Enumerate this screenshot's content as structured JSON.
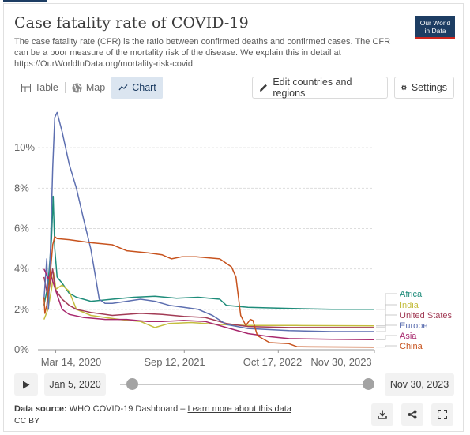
{
  "header": {
    "title": "Case fatality rate of COVID-19",
    "subtitle": "The case fatality rate (CFR) is the ratio between confirmed deaths and confirmed cases. The CFR can be a poor measure of the mortality risk of the disease. We explain this in detail at https://OurWorldInData.org/mortality-risk-covid",
    "logo_line1": "Our World",
    "logo_line2": "in Data"
  },
  "tabs": [
    {
      "label": "Table",
      "icon": "table-icon"
    },
    {
      "label": "Map",
      "icon": "globe-icon"
    },
    {
      "label": "Chart",
      "icon": "line-chart-icon",
      "active": true
    }
  ],
  "buttons": {
    "edit_label": "Edit countries and regions",
    "settings_label": "Settings"
  },
  "timeline": {
    "start_date": "Jan 5, 2020",
    "end_date": "Nov 30, 2023",
    "start_fraction": 0.0,
    "end_fraction": 1.0
  },
  "footer": {
    "source_label": "Data source:",
    "source_text": "WHO COVID-19 Dashboard –",
    "learn_more": "Learn more about this data",
    "license": "CC BY"
  },
  "colors": {
    "Africa": "#1e8c7a",
    "India": "#c4bd3e",
    "United States": "#a23b55",
    "Europe": "#5d6fb0",
    "Asia": "#a8286d",
    "China": "#c7531e"
  },
  "chart_data": {
    "type": "line",
    "title": "",
    "xlabel": "",
    "ylabel": "",
    "x_ticks": [
      "Mar 14, 2020",
      "Sep 12, 2021",
      "Oct 17, 2022",
      "Nov 30, 2023"
    ],
    "y_ticks": [
      "0%",
      "2%",
      "4%",
      "6%",
      "8%",
      "10%"
    ],
    "ylim": [
      0,
      12
    ],
    "xlim": [
      "2020-01-05",
      "2023-11-30"
    ],
    "grid": true,
    "legend": "right",
    "series": [
      {
        "name": "Africa",
        "points": [
          [
            "2020-01-24",
            2.2
          ],
          [
            "2020-02-10",
            3.2
          ],
          [
            "2020-02-25",
            5.5
          ],
          [
            "2020-03-03",
            7.6
          ],
          [
            "2020-03-10",
            5.0
          ],
          [
            "2020-03-20",
            3.6
          ],
          [
            "2020-04-10",
            3.3
          ],
          [
            "2020-05-10",
            2.8
          ],
          [
            "2020-06-10",
            2.6
          ],
          [
            "2020-08-10",
            2.4
          ],
          [
            "2020-11-10",
            2.5
          ],
          [
            "2021-02-10",
            2.6
          ],
          [
            "2021-05-10",
            2.65
          ],
          [
            "2021-08-10",
            2.55
          ],
          [
            "2021-11-10",
            2.6
          ],
          [
            "2022-02-10",
            2.5
          ],
          [
            "2022-03-10",
            2.2
          ],
          [
            "2022-06-10",
            2.1
          ],
          [
            "2022-12-01",
            2.05
          ],
          [
            "2023-06-01",
            2.0
          ],
          [
            "2023-11-30",
            2.0
          ]
        ]
      },
      {
        "name": "India",
        "points": [
          [
            "2020-01-24",
            1.5
          ],
          [
            "2020-02-10",
            2.0
          ],
          [
            "2020-02-25",
            3.0
          ],
          [
            "2020-03-05",
            3.8
          ],
          [
            "2020-03-15",
            3.0
          ],
          [
            "2020-04-10",
            3.2
          ],
          [
            "2020-05-10",
            2.9
          ],
          [
            "2020-06-10",
            2.0
          ],
          [
            "2020-08-10",
            1.7
          ],
          [
            "2020-10-10",
            1.6
          ],
          [
            "2020-12-10",
            1.5
          ],
          [
            "2021-03-10",
            1.4
          ],
          [
            "2021-05-10",
            1.1
          ],
          [
            "2021-07-10",
            1.3
          ],
          [
            "2021-10-10",
            1.35
          ],
          [
            "2022-02-10",
            1.25
          ],
          [
            "2022-06-10",
            1.2
          ],
          [
            "2023-01-01",
            1.2
          ],
          [
            "2023-11-30",
            1.18
          ]
        ]
      },
      {
        "name": "United States",
        "points": [
          [
            "2020-01-24",
            3.6
          ],
          [
            "2020-02-10",
            2.6
          ],
          [
            "2020-02-20",
            3.4
          ],
          [
            "2020-03-01",
            4.0
          ],
          [
            "2020-03-12",
            3.0
          ],
          [
            "2020-04-10",
            2.5
          ],
          [
            "2020-05-10",
            2.2
          ],
          [
            "2020-06-10",
            2.0
          ],
          [
            "2020-08-10",
            1.85
          ],
          [
            "2020-11-10",
            1.7
          ],
          [
            "2021-03-10",
            1.8
          ],
          [
            "2021-06-10",
            1.75
          ],
          [
            "2021-09-10",
            1.65
          ],
          [
            "2021-12-10",
            1.6
          ],
          [
            "2022-03-10",
            1.3
          ],
          [
            "2022-06-10",
            1.15
          ],
          [
            "2022-12-01",
            1.1
          ],
          [
            "2023-11-30",
            1.1
          ]
        ]
      },
      {
        "name": "Europe",
        "points": [
          [
            "2020-01-24",
            2.5
          ],
          [
            "2020-02-05",
            4.5
          ],
          [
            "2020-02-12",
            2.0
          ],
          [
            "2020-02-20",
            4.8
          ],
          [
            "2020-03-01",
            9.0
          ],
          [
            "2020-03-10",
            11.5
          ],
          [
            "2020-03-20",
            11.75
          ],
          [
            "2020-04-10",
            10.8
          ],
          [
            "2020-05-10",
            9.2
          ],
          [
            "2020-06-10",
            8.0
          ],
          [
            "2020-07-10",
            6.5
          ],
          [
            "2020-08-10",
            5.0
          ],
          [
            "2020-09-01",
            3.5
          ],
          [
            "2020-09-15",
            2.5
          ],
          [
            "2020-10-10",
            2.3
          ],
          [
            "2020-11-10",
            2.3
          ],
          [
            "2021-01-10",
            2.4
          ],
          [
            "2021-03-10",
            2.5
          ],
          [
            "2021-05-10",
            2.4
          ],
          [
            "2021-07-10",
            2.2
          ],
          [
            "2021-09-10",
            2.1
          ],
          [
            "2021-11-10",
            2.0
          ],
          [
            "2022-01-10",
            1.7
          ],
          [
            "2022-03-10",
            1.25
          ],
          [
            "2022-06-10",
            1.05
          ],
          [
            "2022-12-01",
            0.95
          ],
          [
            "2023-06-01",
            0.9
          ],
          [
            "2023-11-30",
            0.9
          ]
        ]
      },
      {
        "name": "Asia",
        "points": [
          [
            "2020-01-24",
            4.0
          ],
          [
            "2020-02-05",
            3.7
          ],
          [
            "2020-02-12",
            3.5
          ],
          [
            "2020-02-20",
            3.8
          ],
          [
            "2020-03-01",
            3.4
          ],
          [
            "2020-03-12",
            3.0
          ],
          [
            "2020-04-10",
            2.0
          ],
          [
            "2020-05-10",
            1.75
          ],
          [
            "2020-07-10",
            1.6
          ],
          [
            "2020-10-10",
            1.5
          ],
          [
            "2021-01-10",
            1.5
          ],
          [
            "2021-04-10",
            1.4
          ],
          [
            "2021-06-10",
            1.4
          ],
          [
            "2021-09-10",
            1.45
          ],
          [
            "2021-12-10",
            1.4
          ],
          [
            "2022-03-10",
            1.1
          ],
          [
            "2022-06-10",
            0.8
          ],
          [
            "2022-09-10",
            0.65
          ],
          [
            "2022-12-01",
            0.55
          ],
          [
            "2023-06-01",
            0.52
          ],
          [
            "2023-11-30",
            0.5
          ]
        ]
      },
      {
        "name": "China",
        "points": [
          [
            "2020-01-24",
            2.6
          ],
          [
            "2020-01-28",
            1.8
          ],
          [
            "2020-02-05",
            2.2
          ],
          [
            "2020-02-20",
            3.8
          ],
          [
            "2020-03-01",
            5.2
          ],
          [
            "2020-03-10",
            5.6
          ],
          [
            "2020-03-20",
            5.5
          ],
          [
            "2020-05-10",
            5.45
          ],
          [
            "2020-08-10",
            5.3
          ],
          [
            "2020-11-10",
            5.2
          ],
          [
            "2021-01-10",
            4.9
          ],
          [
            "2021-04-10",
            4.8
          ],
          [
            "2021-06-10",
            4.7
          ],
          [
            "2021-07-20",
            4.5
          ],
          [
            "2021-09-01",
            4.6
          ],
          [
            "2021-11-01",
            4.6
          ],
          [
            "2022-02-10",
            4.5
          ],
          [
            "2022-04-01",
            4.1
          ],
          [
            "2022-04-20",
            3.6
          ],
          [
            "2022-05-10",
            1.7
          ],
          [
            "2022-06-01",
            1.2
          ],
          [
            "2022-06-20",
            1.5
          ],
          [
            "2022-07-01",
            1.45
          ],
          [
            "2022-07-20",
            0.7
          ],
          [
            "2022-09-10",
            0.35
          ],
          [
            "2022-12-01",
            0.3
          ],
          [
            "2023-01-05",
            0.15
          ],
          [
            "2023-03-01",
            0.14
          ],
          [
            "2023-11-30",
            0.13
          ]
        ]
      }
    ]
  }
}
